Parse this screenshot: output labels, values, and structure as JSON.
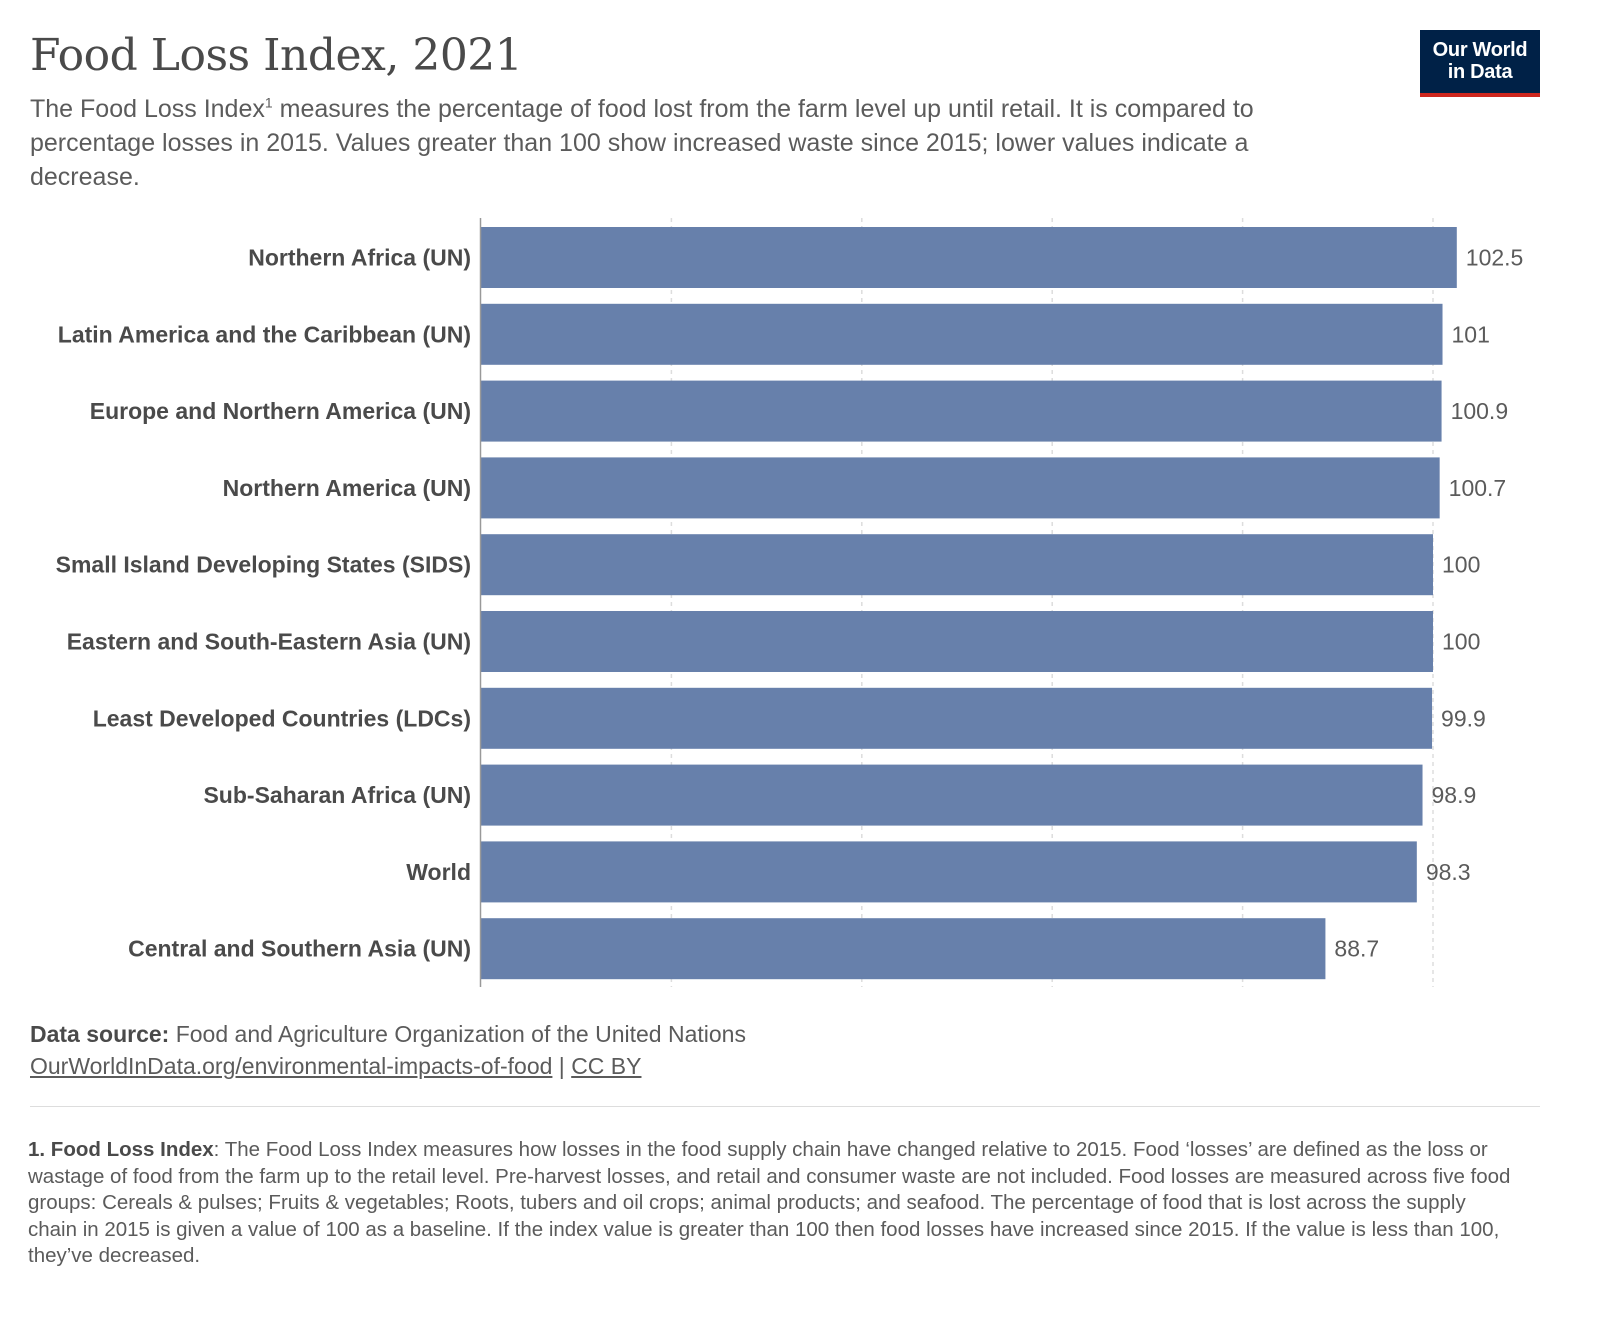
{
  "header": {
    "title": "Food Loss Index, 2021",
    "subtitle_pre": "The Food Loss Index",
    "subtitle_sup": "1",
    "subtitle_post": " measures the percentage of food lost from the farm level up until retail. It is compared to percentage losses in 2015. Values greater than 100 show increased waste since 2015; lower values indicate a decrease."
  },
  "logo": {
    "line1": "Our World",
    "line2": "in Data",
    "bg_color": "#002147",
    "accent_color": "#ce261e"
  },
  "chart_data": {
    "type": "bar",
    "orientation": "horizontal",
    "title": "Food Loss Index, 2021",
    "categories": [
      "Northern Africa (UN)",
      "Latin America and the Caribbean (UN)",
      "Europe and Northern America (UN)",
      "Northern America (UN)",
      "Small Island Developing States (SIDS)",
      "Eastern and South-Eastern Asia (UN)",
      "Least Developed Countries (LDCs)",
      "Sub-Saharan Africa (UN)",
      "World",
      "Central and Southern Asia (UN)"
    ],
    "values": [
      102.5,
      101,
      100.9,
      100.7,
      100,
      100,
      99.9,
      98.9,
      98.3,
      88.7
    ],
    "value_labels": [
      "102.5",
      "101",
      "100.9",
      "100.7",
      "100",
      "100",
      "99.9",
      "98.9",
      "98.3",
      "88.7"
    ],
    "xlim": [
      0,
      100
    ],
    "gridlines": [
      0,
      20,
      40,
      60,
      80,
      100
    ],
    "grid": true,
    "bar_color": "#6780ab"
  },
  "source": {
    "label": "Data source:",
    "text": " Food and Agriculture Organization of the United Nations",
    "link": "OurWorldInData.org/environmental-impacts-of-food",
    "separator": " | ",
    "license": "CC BY"
  },
  "footnote": {
    "label": "1. Food Loss Index",
    "text": ": The Food Loss Index measures how losses in the food supply chain have changed relative to 2015. Food ‘losses’ are defined as the loss or wastage of food from the farm up to the retail level. Pre-harvest losses, and retail and consumer waste are not included. Food losses are measured across five food groups: Cereals & pulses; Fruits & vegetables; Roots, tubers and oil crops; animal products; and seafood. The percentage of food that is lost across the supply chain in 2015 is given a value of 100 as a baseline. If the index value is greater than 100 then food losses have increased since 2015. If the value is less than 100, they’ve decreased."
  }
}
